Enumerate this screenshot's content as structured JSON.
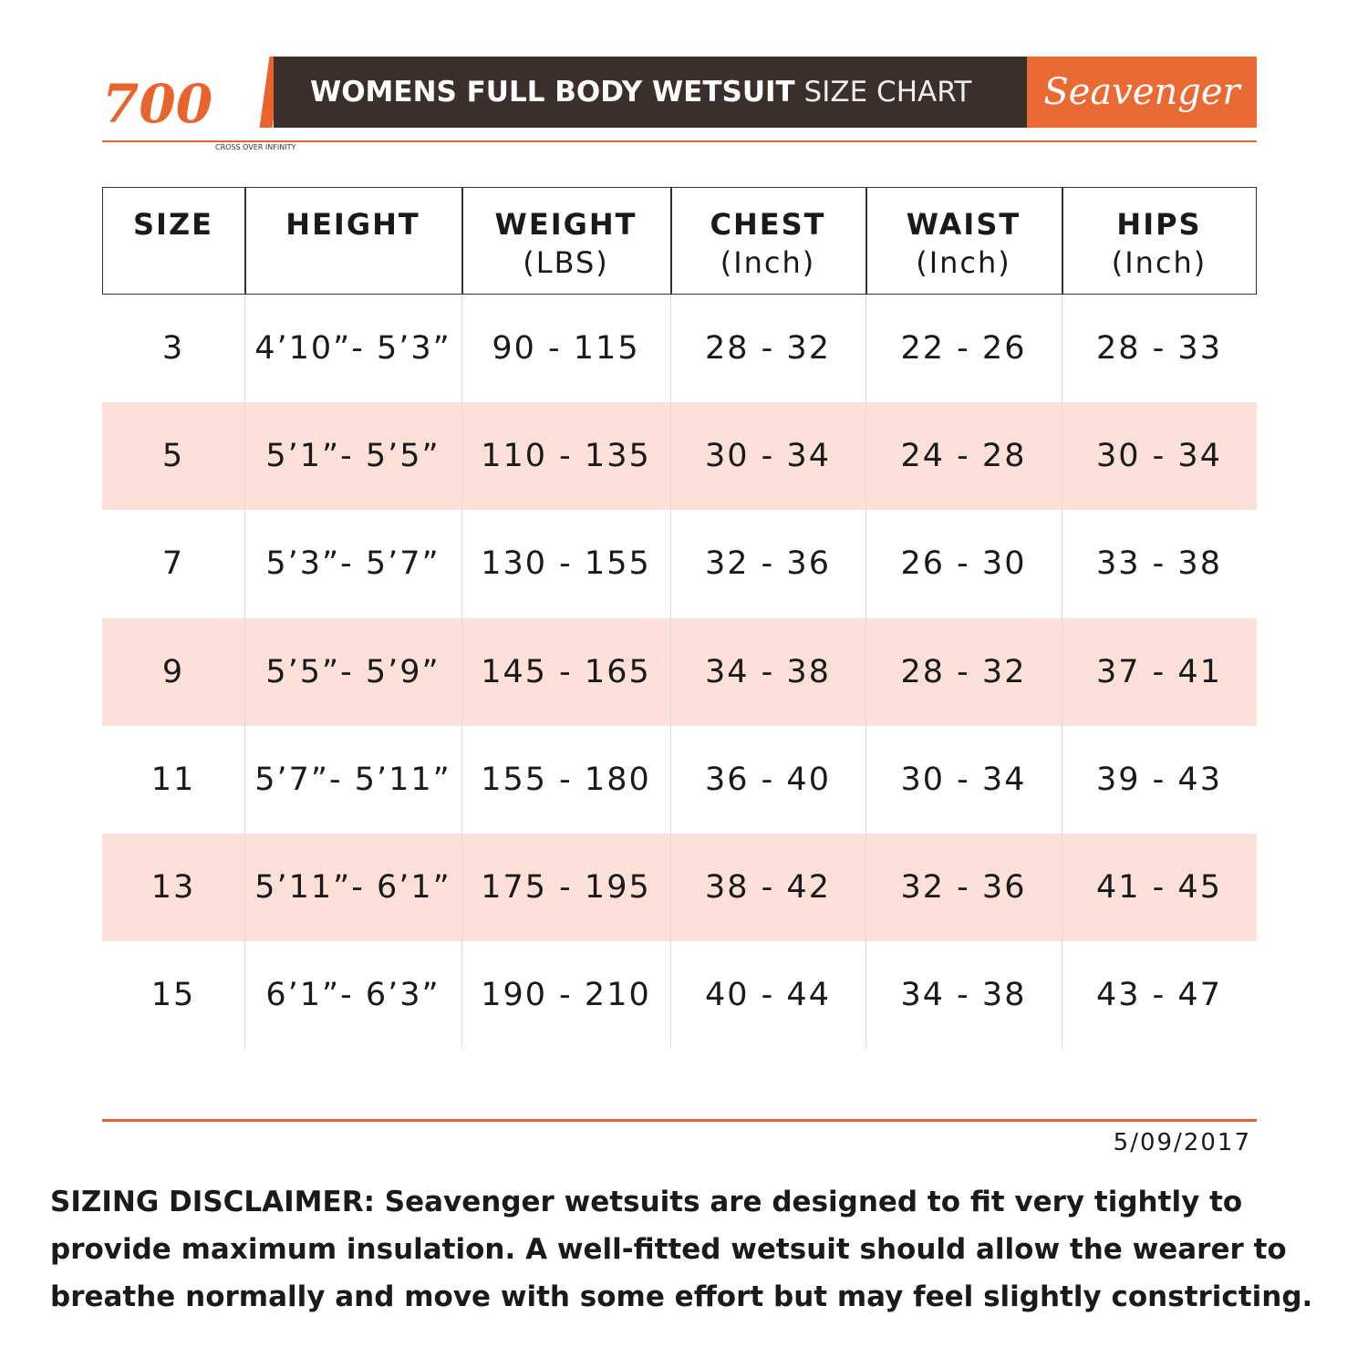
{
  "header": {
    "logo_number": "700",
    "logo_tagline": "CROSS OVER INFINITY",
    "title_bold": "WOMENS FULL BODY WETSUIT",
    "title_light": "SIZE CHART",
    "brand": "Seavenger"
  },
  "table": {
    "columns": [
      {
        "title": "SIZE"
      },
      {
        "title": "HEIGHT"
      },
      {
        "title": "WEIGHT",
        "unit": "(LBS)"
      },
      {
        "title": "CHEST",
        "unit": "(Inch)"
      },
      {
        "title": "WAIST",
        "unit": "(Inch)"
      },
      {
        "title": "HIPS",
        "unit": "(Inch)"
      }
    ],
    "rows": [
      [
        "3",
        "4’10”- 5’3”",
        "90 - 115",
        "28 - 32",
        "22 - 26",
        "28 - 33"
      ],
      [
        "5",
        "5’1”- 5’5”",
        "110 - 135",
        "30 - 34",
        "24 - 28",
        "30 - 34"
      ],
      [
        "7",
        "5’3”- 5’7”",
        "130 - 155",
        "32 - 36",
        "26 - 30",
        "33 - 38"
      ],
      [
        "9",
        "5’5”- 5’9”",
        "145 - 165",
        "34 - 38",
        "28 - 32",
        "37 - 41"
      ],
      [
        "11",
        "5’7”- 5’11”",
        "155 - 180",
        "36 - 40",
        "30 - 34",
        "39 - 43"
      ],
      [
        "13",
        "5’11”- 6’1”",
        "175 - 195",
        "38 - 42",
        "32 - 36",
        "41 - 45"
      ],
      [
        "15",
        "6’1”- 6’3”",
        "190 - 210",
        "40 - 44",
        "34 - 38",
        "43 - 47"
      ]
    ]
  },
  "footer": {
    "date": "5/09/2017",
    "disclaimer": "SIZING DISCLAIMER: Seavenger wetsuits are designed to fit very tightly to provide maximum insulation. A well-fitted wetsuit should allow the wearer to breathe normally and move with some effort but may feel slightly constricting."
  }
}
